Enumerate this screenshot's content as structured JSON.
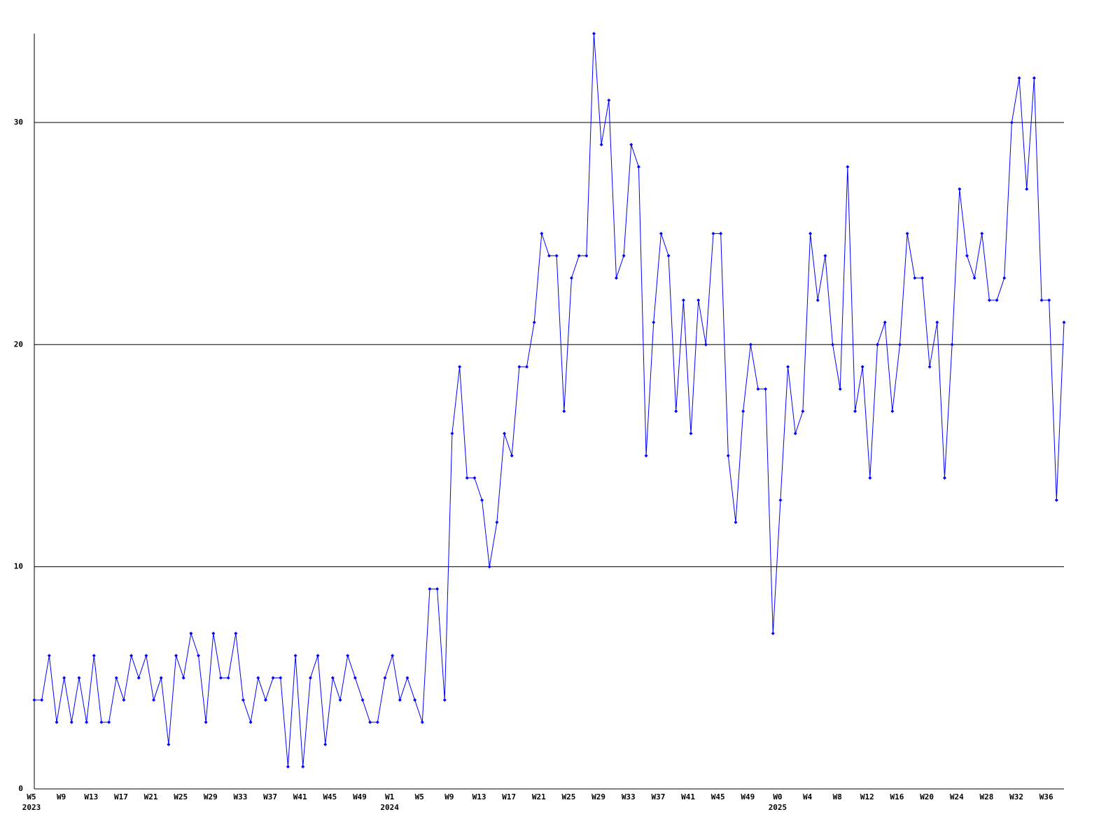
{
  "chart_data": {
    "type": "line",
    "color": "#0000ff",
    "grid": true,
    "ylim": [
      0,
      34
    ],
    "yticks": [
      0,
      10,
      20,
      30
    ],
    "categories": [
      "W5",
      null,
      null,
      null,
      "W9",
      null,
      null,
      null,
      "W13",
      null,
      null,
      null,
      "W17",
      null,
      null,
      null,
      "W21",
      null,
      null,
      null,
      "W25",
      null,
      null,
      null,
      "W29",
      null,
      null,
      null,
      "W33",
      null,
      null,
      null,
      "W37",
      null,
      null,
      null,
      "W41",
      null,
      null,
      null,
      "W45",
      null,
      null,
      null,
      "W49",
      null,
      null,
      null,
      "W1",
      null,
      null,
      null,
      "W5",
      null,
      null,
      null,
      "W9",
      null,
      null,
      null,
      "W13",
      null,
      null,
      null,
      "W17",
      null,
      null,
      null,
      "W21",
      null,
      null,
      null,
      "W25",
      null,
      null,
      null,
      "W29",
      null,
      null,
      null,
      "W33",
      null,
      null,
      null,
      "W37",
      null,
      null,
      null,
      "W41",
      null,
      null,
      null,
      "W45",
      null,
      null,
      null,
      "W49",
      null,
      null,
      null,
      "W0",
      null,
      null,
      null,
      "W4",
      null,
      null,
      null,
      "W8",
      null,
      null,
      null,
      "W12",
      null,
      null,
      null,
      "W16",
      null,
      null,
      null,
      "W20",
      null,
      null,
      null,
      "W24",
      null,
      null,
      null,
      "W28",
      null,
      null,
      null,
      "W32",
      null,
      null,
      null,
      "W36",
      null,
      null
    ],
    "year_labels": [
      {
        "index": 0,
        "label": "2023"
      },
      {
        "index": 48,
        "label": "2024"
      },
      {
        "index": 100,
        "label": "2025"
      }
    ],
    "values": [
      4,
      4,
      6,
      3,
      5,
      3,
      5,
      3,
      6,
      3,
      3,
      5,
      4,
      6,
      5,
      6,
      4,
      5,
      2,
      6,
      5,
      7,
      6,
      3,
      7,
      5,
      5,
      7,
      4,
      3,
      5,
      4,
      5,
      5,
      1,
      6,
      1,
      5,
      6,
      2,
      5,
      4,
      6,
      5,
      4,
      3,
      3,
      5,
      6,
      4,
      5,
      4,
      3,
      9,
      9,
      4,
      16,
      19,
      14,
      14,
      13,
      10,
      12,
      16,
      15,
      19,
      19,
      21,
      25,
      24,
      24,
      17,
      23,
      24,
      24,
      34,
      29,
      31,
      23,
      24,
      29,
      28,
      15,
      21,
      25,
      24,
      17,
      22,
      16,
      22,
      20,
      25,
      25,
      15,
      12,
      17,
      20,
      18,
      18,
      7,
      13,
      19,
      16,
      17,
      25,
      22,
      24,
      20,
      18,
      28,
      17,
      19,
      14,
      20,
      21,
      17,
      20,
      25,
      23,
      23,
      19,
      21,
      14,
      20,
      27,
      24,
      23,
      25,
      22,
      22,
      23,
      30,
      32,
      27,
      32,
      22,
      22,
      13,
      21
    ]
  }
}
